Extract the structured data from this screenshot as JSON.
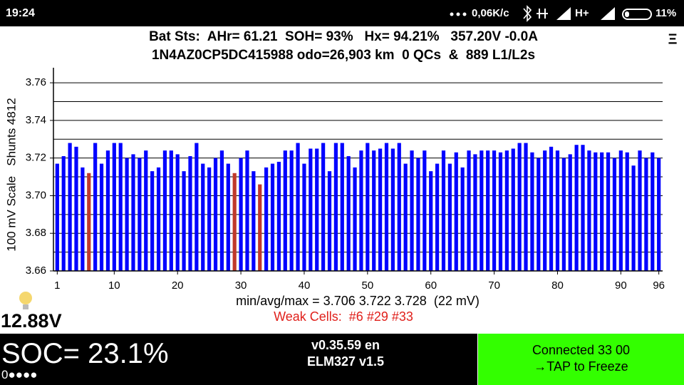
{
  "status_bar": {
    "time": "19:24",
    "speed": "0,06K/c",
    "network": "H+",
    "battery": "11%"
  },
  "header": {
    "line1": "Bat Sts:  AHr= 61.21  SOH= 93%   Hx= 94.21%   357.20V -0.0A",
    "line2": "1N4AZ0CP5DC415988 odo=26,903 km  0 QCs  &  889 L1/L2s",
    "menu": "Ξ"
  },
  "chart_data": {
    "type": "bar",
    "y_label": "100 mV Scale   Shunts 4812",
    "summary": "min/avg/max = 3.706 3.722 3.728  (22 mV)",
    "weak_cells": "Weak Cells:  #6 #29 #33",
    "x": [
      1,
      2,
      3,
      4,
      5,
      6,
      7,
      8,
      9,
      10,
      11,
      12,
      13,
      14,
      15,
      16,
      17,
      18,
      19,
      20,
      21,
      22,
      23,
      24,
      25,
      26,
      27,
      28,
      29,
      30,
      31,
      32,
      33,
      34,
      35,
      36,
      37,
      38,
      39,
      40,
      41,
      42,
      43,
      44,
      45,
      46,
      47,
      48,
      49,
      50,
      51,
      52,
      53,
      54,
      55,
      56,
      57,
      58,
      59,
      60,
      61,
      62,
      63,
      64,
      65,
      66,
      67,
      68,
      69,
      70,
      71,
      72,
      73,
      74,
      75,
      76,
      77,
      78,
      79,
      80,
      81,
      82,
      83,
      84,
      85,
      86,
      87,
      88,
      89,
      90,
      91,
      92,
      93,
      94,
      95,
      96
    ],
    "values": [
      3.717,
      3.721,
      3.728,
      3.726,
      3.715,
      3.712,
      3.728,
      3.717,
      3.724,
      3.728,
      3.728,
      3.72,
      3.722,
      3.72,
      3.724,
      3.713,
      3.715,
      3.724,
      3.724,
      3.722,
      3.713,
      3.721,
      3.728,
      3.717,
      3.715,
      3.72,
      3.724,
      3.717,
      3.712,
      3.72,
      3.724,
      3.713,
      3.706,
      3.715,
      3.717,
      3.718,
      3.724,
      3.724,
      3.728,
      3.717,
      3.725,
      3.725,
      3.728,
      3.713,
      3.728,
      3.728,
      3.721,
      3.715,
      3.724,
      3.728,
      3.724,
      3.725,
      3.728,
      3.725,
      3.728,
      3.717,
      3.724,
      3.72,
      3.724,
      3.713,
      3.717,
      3.724,
      3.717,
      3.723,
      3.715,
      3.724,
      3.722,
      3.724,
      3.724,
      3.724,
      3.723,
      3.724,
      3.725,
      3.728,
      3.728,
      3.723,
      3.72,
      3.724,
      3.726,
      3.724,
      3.72,
      3.722,
      3.727,
      3.727,
      3.724,
      3.723,
      3.723,
      3.723,
      3.72,
      3.724,
      3.723,
      3.716,
      3.724,
      3.72,
      3.723,
      3.72
    ],
    "color": "#0000ff",
    "highlight_color": "#c0392b",
    "highlight_cells": [
      6,
      29,
      33
    ],
    "xlim": [
      0.4,
      96.6
    ],
    "xticks": [
      1,
      10,
      20,
      30,
      40,
      50,
      60,
      70,
      80,
      90,
      96
    ],
    "ylim": [
      3.66,
      3.768
    ],
    "yticks": [
      3.66,
      3.68,
      {
        "value": 3.7,
        "label": "3.70"
      },
      3.72,
      3.74,
      3.76
    ],
    "minor_yticks": [
      3.67,
      3.69,
      3.71,
      3.73,
      3.75
    ],
    "grid": true
  },
  "aux": {
    "voltage": "12.88V",
    "soc": "SOC= 23.1%",
    "dots": "0●●●●",
    "version": "v0.35.59 en",
    "adapter": "ELM327 v1.5",
    "connection": "Connected 33 00",
    "action": "→TAP to Freeze"
  }
}
